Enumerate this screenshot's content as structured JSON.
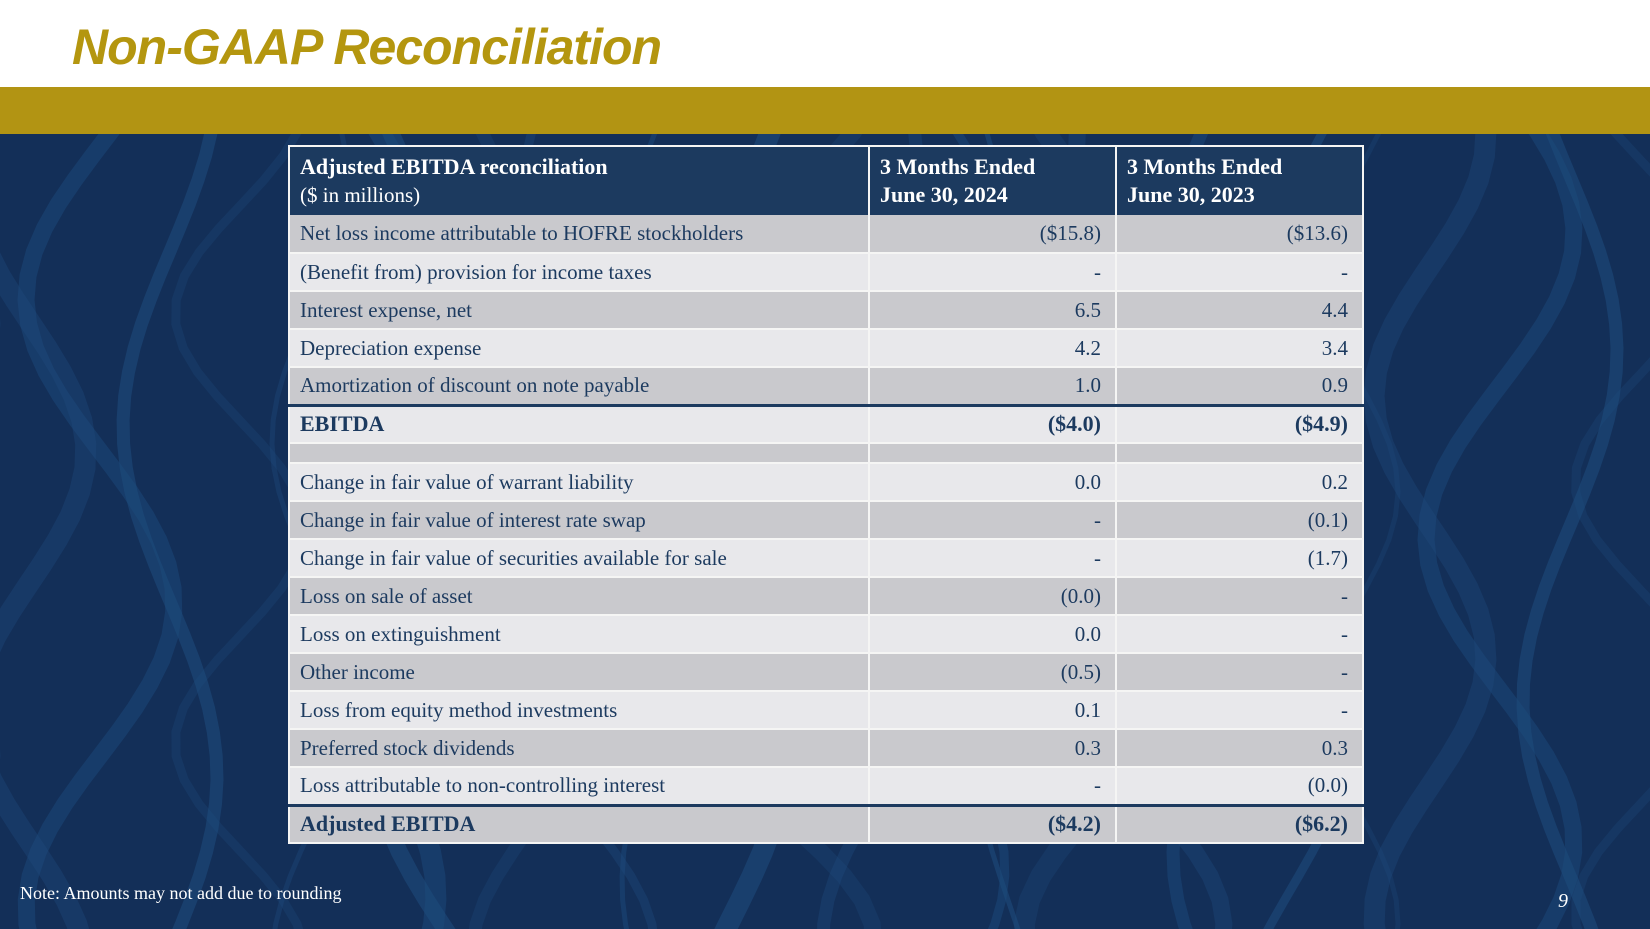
{
  "slide": {
    "title": "Non-GAAP Reconciliation",
    "note": "Note: Amounts may not add due to rounding",
    "page_number": "9"
  },
  "colors": {
    "gold_bar": "#b29413",
    "title_gold": "#b4960f",
    "header_navy": "#1c3a5f",
    "text_navy": "#1c3a5f",
    "row_dark": "#c9c9cd",
    "row_light": "#e8e8eb",
    "background_navy": "#132f58",
    "pattern_stroke": "#1e4b7d",
    "divider_white": "#f5f5f4"
  },
  "table": {
    "header": {
      "col1_line1": "Adjusted EBITDA reconciliation",
      "col1_line2": "($ in millions)",
      "col2_line1": "3 Months Ended",
      "col2_line2": "June 30, 2024",
      "col3_line1": "3 Months Ended",
      "col3_line2": "June 30, 2023"
    },
    "rows": [
      {
        "label": "Net loss income attributable to HOFRE stockholders",
        "v2024": "($15.8)",
        "v2023": "($13.6)"
      },
      {
        "label": "(Benefit from) provision for income taxes",
        "v2024": "-",
        "v2023": "-"
      },
      {
        "label": "Interest expense, net",
        "v2024": "6.5",
        "v2023": "4.4"
      },
      {
        "label": "Depreciation expense",
        "v2024": "4.2",
        "v2023": "3.4"
      },
      {
        "label": "Amortization of discount on note payable",
        "v2024": "1.0",
        "v2023": "0.9"
      },
      {
        "label": "EBITDA",
        "v2024": "($4.0)",
        "v2023": "($4.9)",
        "bold": true,
        "topBorder": true
      },
      {
        "spacer": true,
        "label": "",
        "v2024": "",
        "v2023": ""
      },
      {
        "label": "Change in fair value of warrant liability",
        "v2024": "0.0",
        "v2023": "0.2"
      },
      {
        "label": "Change in fair value of interest rate swap",
        "v2024": "-",
        "v2023": "(0.1)"
      },
      {
        "label": "Change in fair value of securities available for sale",
        "v2024": "-",
        "v2023": "(1.7)"
      },
      {
        "label": "Loss on sale of asset",
        "v2024": "(0.0)",
        "v2023": "-"
      },
      {
        "label": "Loss on extinguishment",
        "v2024": "0.0",
        "v2023": "-"
      },
      {
        "label": "Other income",
        "v2024": "(0.5)",
        "v2023": "-"
      },
      {
        "label": "Loss from equity method investments",
        "v2024": "0.1",
        "v2023": "-"
      },
      {
        "label": "Preferred stock dividends",
        "v2024": "0.3",
        "v2023": "0.3"
      },
      {
        "label": "Loss attributable to non-controlling interest",
        "v2024": "-",
        "v2023": "(0.0)"
      },
      {
        "label": "Adjusted EBITDA",
        "v2024": "($4.2)",
        "v2023": "($6.2)",
        "bold": true,
        "topBorder": true
      }
    ]
  }
}
